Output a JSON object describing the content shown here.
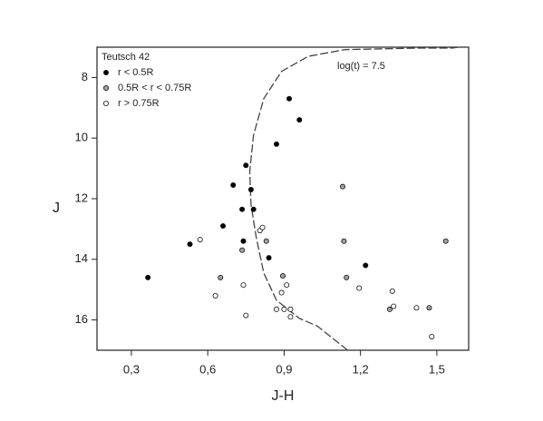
{
  "chart_data": {
    "type": "scatter",
    "legend_title": "Teutsch 42",
    "annotation": "log(t) = 7.5",
    "x_label": "J-H",
    "y_label": "J",
    "xlim": [
      0.165,
      1.625
    ],
    "ylim": [
      7,
      17
    ],
    "y_inverted": true,
    "xticks": [
      {
        "value": 0.3,
        "label": "0,3"
      },
      {
        "value": 0.6,
        "label": "0,6"
      },
      {
        "value": 0.9,
        "label": "0,9"
      },
      {
        "value": 1.2,
        "label": "1,2"
      },
      {
        "value": 1.5,
        "label": "1,5"
      }
    ],
    "yticks": [
      8,
      10,
      12,
      14,
      16
    ],
    "legend": "top-left",
    "series": [
      {
        "name": "r < 0.5R",
        "color": "#000000",
        "x": [
          0.92,
          0.96,
          0.87,
          0.75,
          0.7,
          0.77,
          0.735,
          0.78,
          0.66,
          0.74,
          0.84,
          0.53,
          0.365,
          1.22
        ],
        "values": [
          8.7,
          9.4,
          10.2,
          10.9,
          11.55,
          11.7,
          12.35,
          12.35,
          12.9,
          13.4,
          13.95,
          13.5,
          14.6,
          14.2
        ]
      },
      {
        "name": "0.5R < r < 0.75R",
        "color": "#a0a0a0",
        "x": [
          0.65,
          0.735,
          0.83,
          1.13,
          1.135,
          0.895,
          1.145,
          1.315,
          1.47,
          1.535
        ],
        "values": [
          14.6,
          13.7,
          13.4,
          11.6,
          13.4,
          14.55,
          14.6,
          15.65,
          15.6,
          13.4
        ]
      },
      {
        "name": "r > 0.75R",
        "color": "#ffffff",
        "x": [
          0.57,
          0.63,
          0.74,
          0.75,
          0.805,
          0.815,
          0.91,
          0.89,
          1.195,
          0.87,
          0.9,
          0.925,
          0.925,
          1.325,
          1.33,
          1.42,
          1.48
        ],
        "values": [
          13.35,
          15.2,
          14.85,
          15.85,
          13.05,
          12.95,
          14.85,
          15.1,
          14.95,
          15.65,
          15.65,
          15.65,
          15.9,
          15.05,
          15.55,
          15.6,
          16.55
        ]
      }
    ],
    "curves": [
      {
        "color": "#444444",
        "x": [
          1.15,
          1.03,
          0.96,
          0.87,
          0.82,
          0.79,
          0.77,
          0.765,
          0.78,
          0.82,
          0.89,
          0.995,
          1.14,
          1.42,
          1.56,
          1.625
        ],
        "values": [
          17,
          16.2,
          15.95,
          15.35,
          14.45,
          13.25,
          12.2,
          11.1,
          9.9,
          8.7,
          7.8,
          7.3,
          7.08,
          7.03,
          7.03,
          6.95
        ]
      }
    ]
  }
}
